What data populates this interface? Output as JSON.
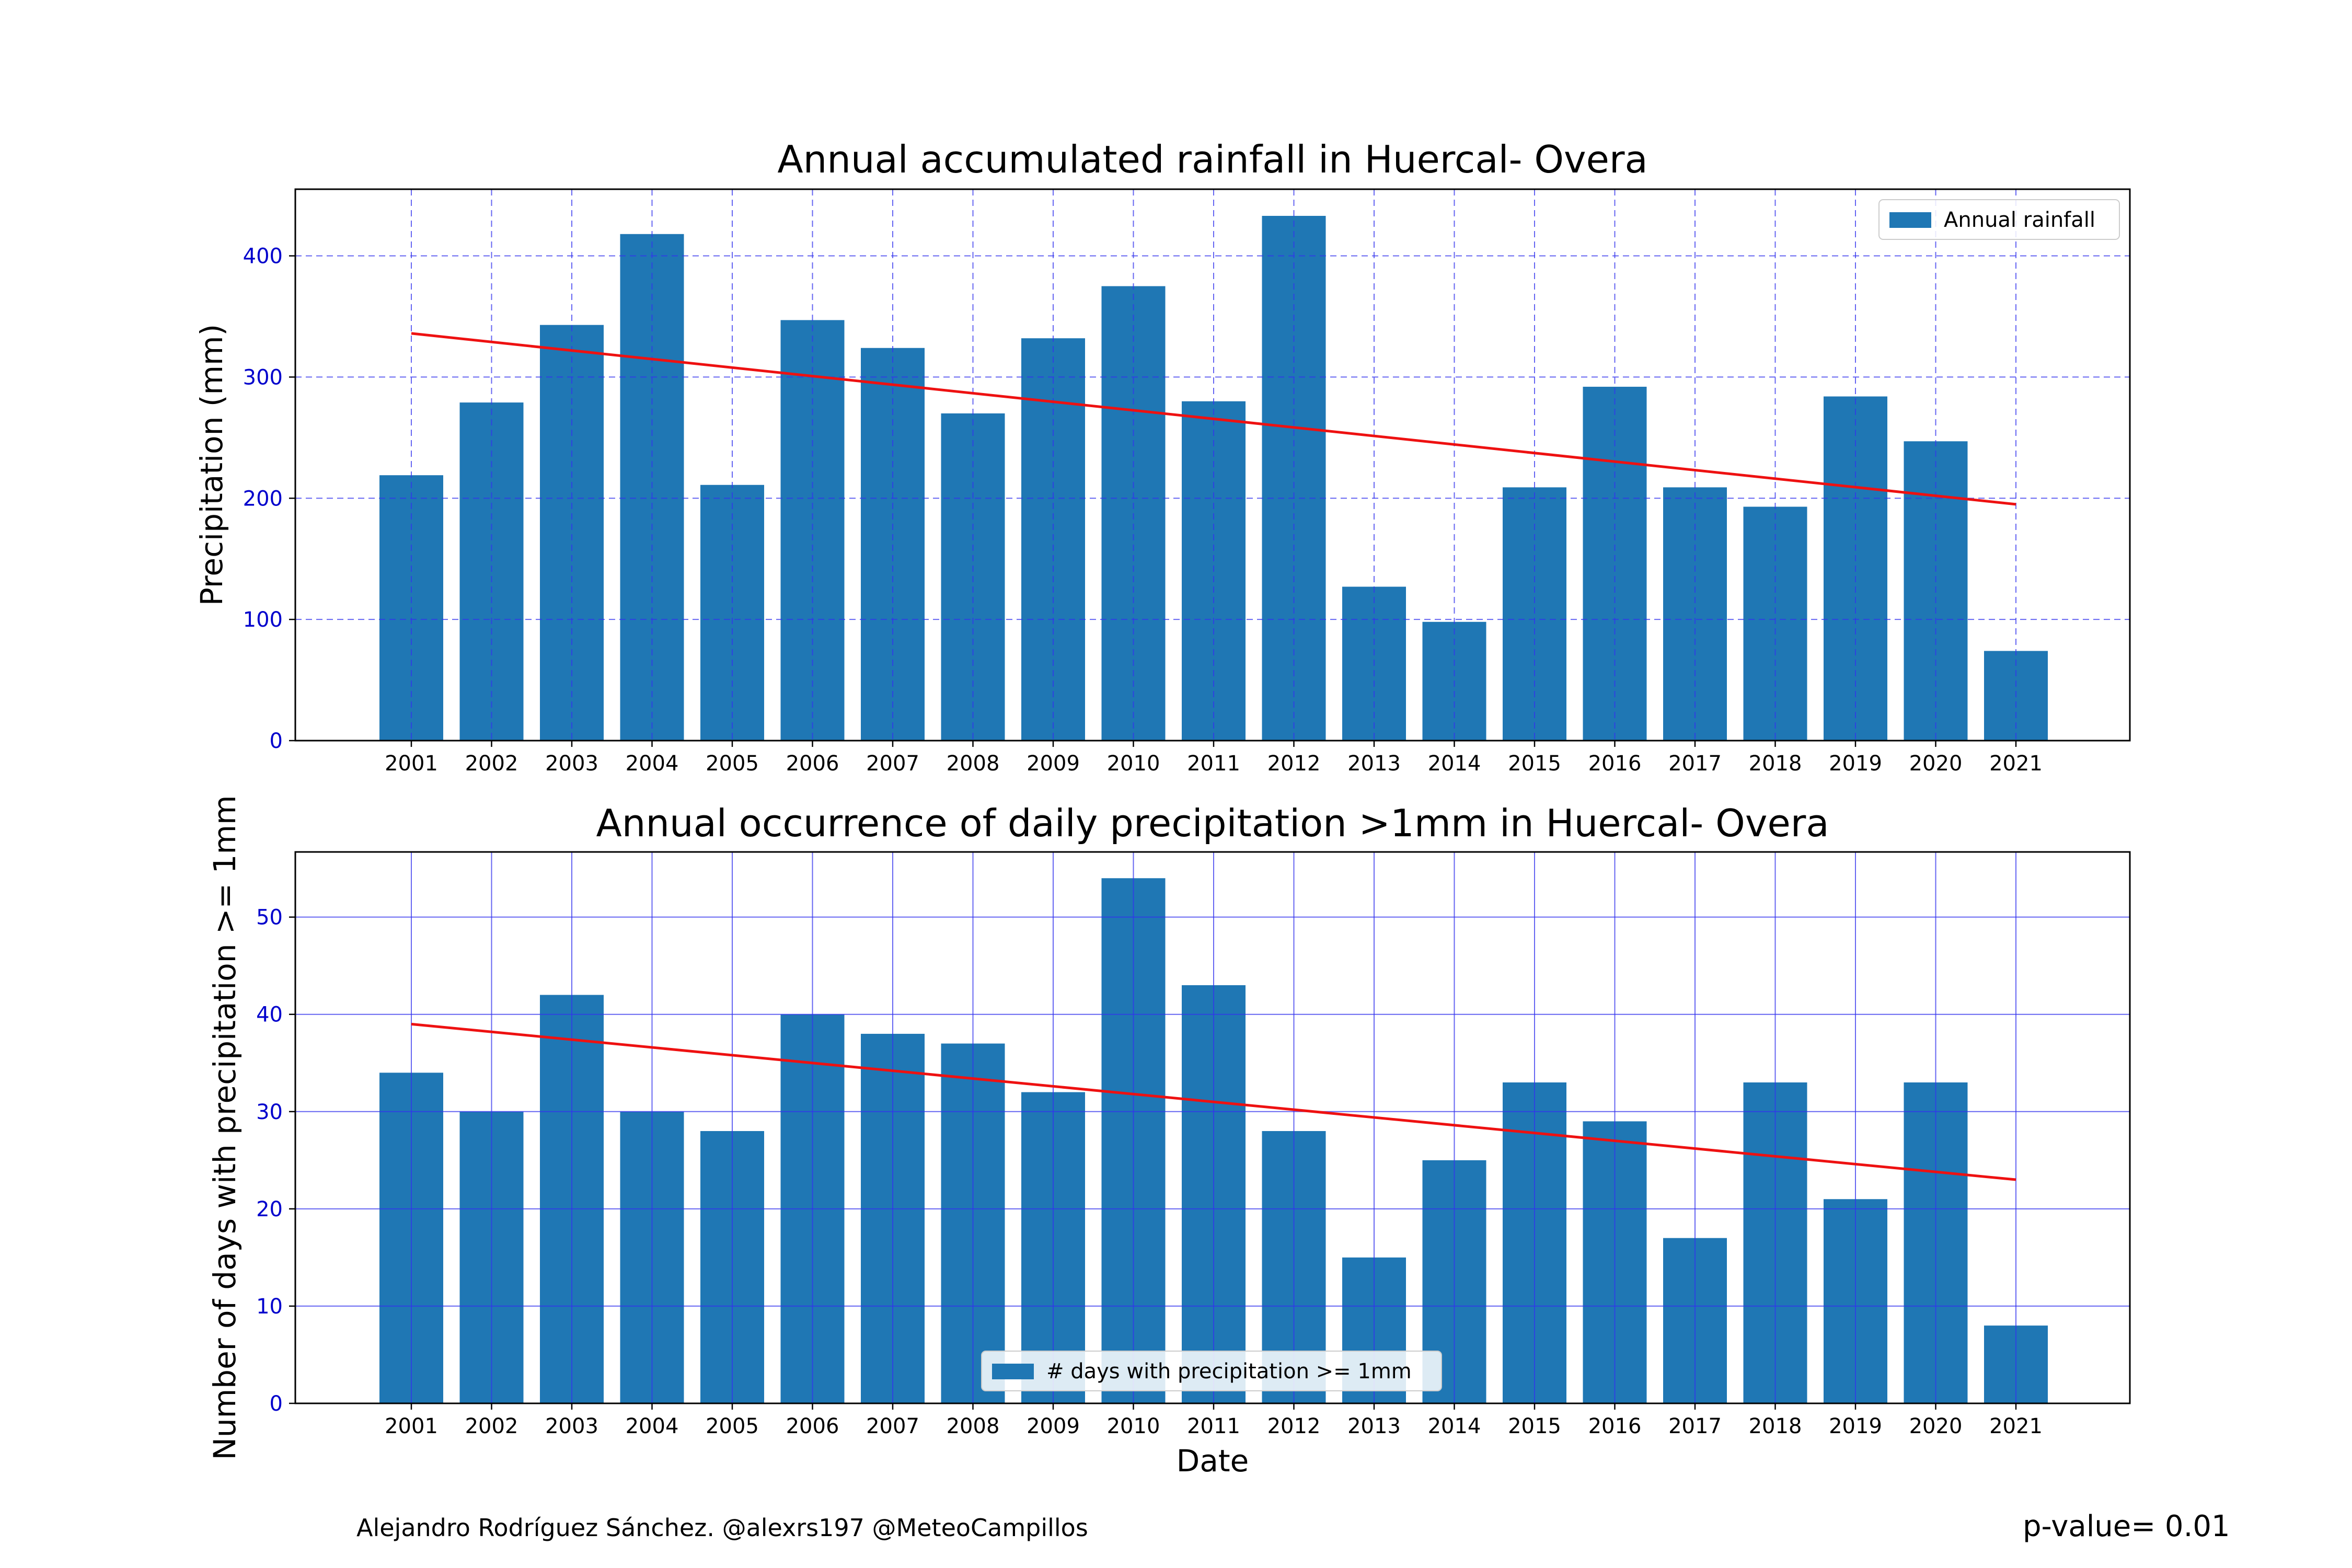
{
  "colors": {
    "bar": "#1f77b4",
    "trend": "#ee1111",
    "grid": "#3333ee",
    "tick_y": "#0000cc"
  },
  "footer": {
    "credit": "Alejandro Rodríguez Sánchez. @alexrs197 @MeteoCampillos",
    "pvalue": "p-value= 0.01"
  },
  "chart_data": [
    {
      "type": "bar",
      "title": "Annual accumulated rainfall in Huercal- Overa",
      "xlabel": "",
      "ylabel": "Precipitation (mm)",
      "ylim": [
        0,
        455
      ],
      "yticks": [
        0,
        100,
        200,
        300,
        400
      ],
      "grid": "dashed",
      "legend_position": "top-right",
      "categories": [
        "2001",
        "2002",
        "2003",
        "2004",
        "2005",
        "2006",
        "2007",
        "2008",
        "2009",
        "2010",
        "2011",
        "2012",
        "2013",
        "2014",
        "2015",
        "2016",
        "2017",
        "2018",
        "2019",
        "2020",
        "2021"
      ],
      "series": [
        {
          "name": "Annual rainfall",
          "values": [
            219,
            279,
            343,
            418,
            211,
            347,
            324,
            270,
            332,
            375,
            280,
            433,
            127,
            98,
            209,
            292,
            209,
            193,
            284,
            247,
            74
          ]
        }
      ],
      "trend": [
        336,
        195
      ]
    },
    {
      "type": "bar",
      "title": "Annual occurrence of daily precipitation >1mm in Huercal- Overa",
      "xlabel": "Date",
      "ylabel": "Number of days with precipitation >= 1mm",
      "ylim": [
        0,
        56.7
      ],
      "yticks": [
        0,
        10,
        20,
        30,
        40,
        50
      ],
      "grid": "solid",
      "legend_position": "lower-center",
      "categories": [
        "2001",
        "2002",
        "2003",
        "2004",
        "2005",
        "2006",
        "2007",
        "2008",
        "2009",
        "2010",
        "2011",
        "2012",
        "2013",
        "2014",
        "2015",
        "2016",
        "2017",
        "2018",
        "2019",
        "2020",
        "2021"
      ],
      "series": [
        {
          "name": "# days with precipitation >= 1mm",
          "values": [
            34,
            30,
            42,
            30,
            28,
            40,
            38,
            37,
            32,
            54,
            43,
            28,
            15,
            25,
            33,
            29,
            17,
            33,
            21,
            33,
            8
          ]
        }
      ],
      "trend": [
        39,
        23
      ]
    }
  ]
}
